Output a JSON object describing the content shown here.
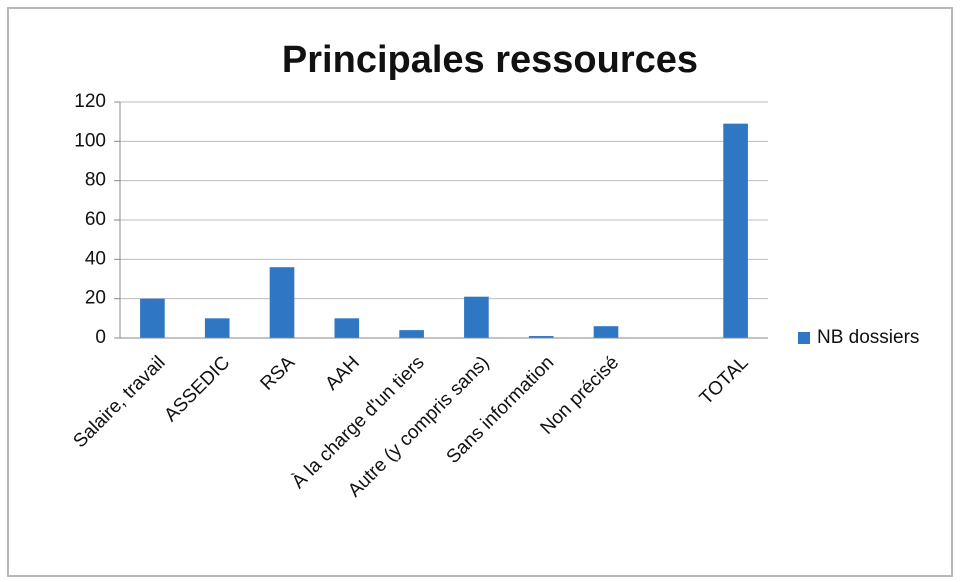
{
  "chart_data": {
    "type": "bar",
    "title": "Principales ressources",
    "categories": [
      "Salaire, travail",
      "ASSEDIC",
      "RSA",
      "AAH",
      "À la charge d'un tiers",
      "Autre (y compris sans)",
      "Sans information",
      "Non précisé",
      null,
      "TOTAL"
    ],
    "series": [
      {
        "name": "NB dossiers",
        "color": "#2f77c2",
        "values": [
          20,
          10,
          36,
          10,
          4,
          21,
          1,
          6,
          null,
          109
        ]
      }
    ],
    "ylim": [
      0,
      120
    ],
    "yticks": [
      0,
      20,
      40,
      60,
      80,
      100,
      120
    ],
    "grid": true,
    "legend": "right"
  }
}
